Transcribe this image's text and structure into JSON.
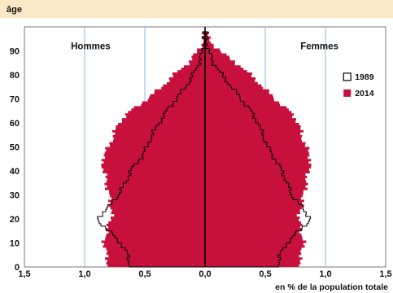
{
  "chart_data": {
    "type": "population_pyramid",
    "y_label": "âge",
    "x_label": "en % de la population totale",
    "sides": {
      "left": "Hommes",
      "right": "Femmes"
    },
    "x_range": [
      -1.5,
      1.5
    ],
    "x_ticks": [
      {
        "v": -1.5,
        "t": "1,5"
      },
      {
        "v": -1.0,
        "t": "1,0"
      },
      {
        "v": -0.5,
        "t": "0,5"
      },
      {
        "v": 0,
        "t": "0,0"
      },
      {
        "v": 0.5,
        "t": "0,5"
      },
      {
        "v": 1.0,
        "t": "1,0"
      },
      {
        "v": 1.5,
        "t": "1,5"
      }
    ],
    "y_range": [
      0,
      100
    ],
    "y_ticks": [
      0,
      10,
      20,
      30,
      40,
      50,
      60,
      70,
      80,
      90
    ],
    "legend": [
      {
        "name": "1989",
        "style": "outline",
        "color": "#000000"
      },
      {
        "name": "2014",
        "style": "fill",
        "color": "#c8103d"
      }
    ],
    "series": [
      {
        "name": "2014",
        "age_anchors": [
          0,
          5,
          10,
          15,
          20,
          25,
          30,
          35,
          40,
          45,
          50,
          55,
          60,
          65,
          70,
          75,
          80,
          85,
          90,
          95,
          100
        ],
        "men": [
          0.8,
          0.82,
          0.84,
          0.82,
          0.78,
          0.78,
          0.8,
          0.82,
          0.84,
          0.86,
          0.8,
          0.76,
          0.72,
          0.62,
          0.48,
          0.36,
          0.26,
          0.14,
          0.06,
          0.01,
          0.0
        ],
        "women": [
          0.77,
          0.8,
          0.82,
          0.8,
          0.78,
          0.8,
          0.82,
          0.84,
          0.86,
          0.88,
          0.84,
          0.8,
          0.78,
          0.7,
          0.58,
          0.48,
          0.38,
          0.26,
          0.12,
          0.03,
          0.0
        ]
      },
      {
        "name": "1989",
        "age_anchors": [
          0,
          5,
          10,
          15,
          20,
          25,
          30,
          35,
          40,
          45,
          50,
          55,
          60,
          65,
          70,
          75,
          80,
          85,
          90,
          95,
          100
        ],
        "men": [
          0.62,
          0.64,
          0.7,
          0.8,
          0.9,
          0.8,
          0.72,
          0.66,
          0.62,
          0.54,
          0.48,
          0.44,
          0.38,
          0.32,
          0.24,
          0.16,
          0.1,
          0.05,
          0.02,
          0.005,
          0.0
        ],
        "women": [
          0.6,
          0.62,
          0.68,
          0.78,
          0.88,
          0.8,
          0.72,
          0.68,
          0.64,
          0.58,
          0.52,
          0.48,
          0.44,
          0.38,
          0.3,
          0.22,
          0.14,
          0.07,
          0.03,
          0.008,
          0.0
        ]
      }
    ]
  }
}
